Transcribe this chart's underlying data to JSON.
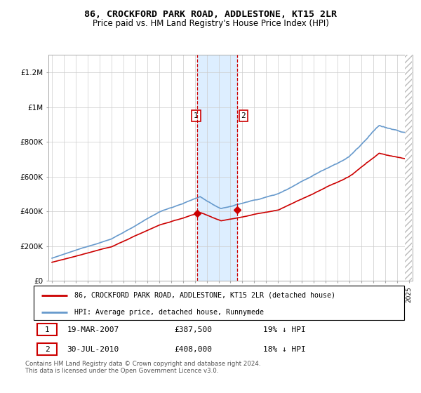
{
  "title1": "86, CROCKFORD PARK ROAD, ADDLESTONE, KT15 2LR",
  "title2": "Price paid vs. HM Land Registry's House Price Index (HPI)",
  "legend_label_red": "86, CROCKFORD PARK ROAD, ADDLESTONE, KT15 2LR (detached house)",
  "legend_label_blue": "HPI: Average price, detached house, Runnymede",
  "transaction1_label": "1",
  "transaction2_label": "2",
  "transaction1_date": "19-MAR-2007",
  "transaction1_price": 387500,
  "transaction1_price_str": "£387,500",
  "transaction1_pct": "19% ↓ HPI",
  "transaction2_date": "30-JUL-2010",
  "transaction2_price": 408000,
  "transaction2_price_str": "£408,000",
  "transaction2_pct": "18% ↓ HPI",
  "footnote": "Contains HM Land Registry data © Crown copyright and database right 2024.\nThis data is licensed under the Open Government Licence v3.0.",
  "ylim": [
    0,
    1300000
  ],
  "yticks": [
    0,
    200000,
    400000,
    600000,
    800000,
    1000000,
    1200000
  ],
  "ytick_labels": [
    "£0",
    "£200K",
    "£400K",
    "£600K",
    "£800K",
    "£1M",
    "£1.2M"
  ],
  "start_year": 1995,
  "end_year": 2025,
  "transaction1_year": 2007.21,
  "transaction2_year": 2010.58,
  "red_color": "#cc0000",
  "blue_color": "#6699cc",
  "shading_color": "#ddeeff",
  "grid_color": "#cccccc",
  "background_color": "#ffffff",
  "hatch_color": "#bbbbbb"
}
